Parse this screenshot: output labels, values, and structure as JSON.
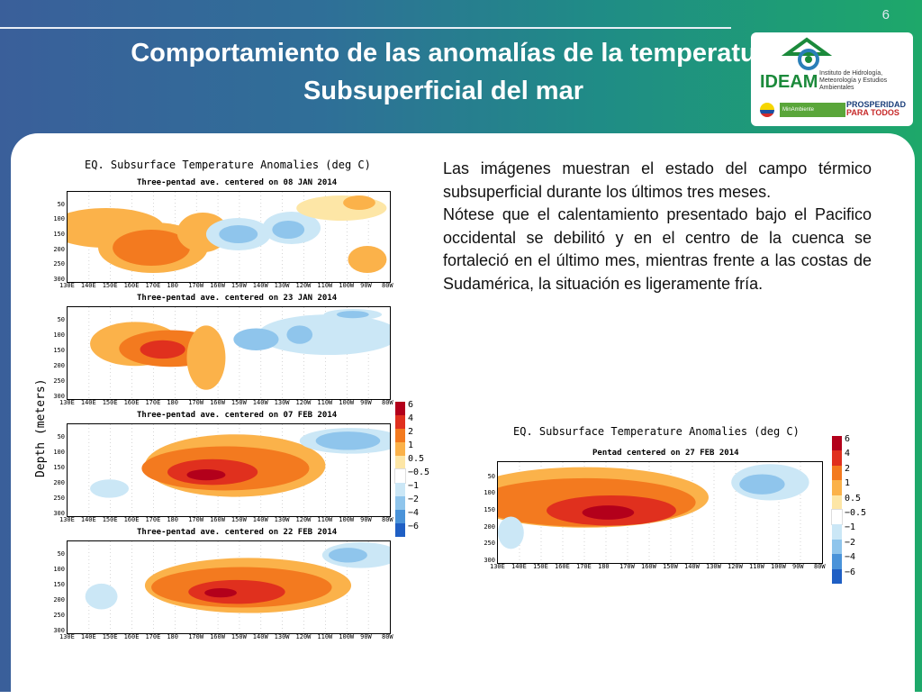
{
  "slide": {
    "page_number": "6",
    "title_line1": "Comportamiento de las anomalías de la temperatu",
    "title_line2": "Subsuperficial del mar"
  },
  "logo": {
    "name": "IDEAM",
    "institute": "Instituto de Hidrología, Meteorología y Estudios Ambientales",
    "ministry": "MinAmbiente",
    "slogan_line1": "PROSPERIDAD",
    "slogan_line2": "PARA TODOS"
  },
  "left_figure": {
    "title": "EQ. Subsurface Temperature Anomalies (deg C)",
    "ylabel": "Depth (meters)",
    "panels": [
      {
        "subtitle": "Three-pentad ave. centered on 08 JAN 2014"
      },
      {
        "subtitle": "Three-pentad ave. centered on 23 JAN 2014"
      },
      {
        "subtitle": "Three-pentad ave. centered on 07 FEB 2014"
      },
      {
        "subtitle": "Three-pentad ave. centered on 22 FEB 2014"
      }
    ],
    "depth_ticks": [
      "50",
      "100",
      "150",
      "200",
      "250",
      "300"
    ],
    "lon_ticks": [
      "130E",
      "140E",
      "150E",
      "160E",
      "170E",
      "180",
      "170W",
      "160W",
      "150W",
      "140W",
      "130W",
      "120W",
      "110W",
      "100W",
      "90W",
      "80W"
    ],
    "colorbar_labels": [
      "6",
      "4",
      "2",
      "1",
      "0.5",
      "−0.5",
      "−1",
      "−2",
      "−4",
      "−6"
    ]
  },
  "right_figure": {
    "title": "EQ. Subsurface Temperature Anomalies (deg C)",
    "subtitle": "Pentad centered on 27 FEB 2014",
    "depth_ticks": [
      "50",
      "100",
      "150",
      "200",
      "250",
      "300"
    ],
    "lon_ticks": [
      "130E",
      "140E",
      "150E",
      "160E",
      "170E",
      "180",
      "170W",
      "160W",
      "150W",
      "140W",
      "130W",
      "120W",
      "110W",
      "100W",
      "90W",
      "80W"
    ],
    "colorbar_labels": [
      "6",
      "4",
      "2",
      "1",
      "0.5",
      "−0.5",
      "−1",
      "−2",
      "−4",
      "−6"
    ]
  },
  "colors": {
    "c6": "#b3001b",
    "c4": "#e0301e",
    "c2": "#f37a1f",
    "c1": "#fbb24a",
    "c05": "#fde6a6",
    "n05": "#ffffff",
    "n1": "#cbe7f6",
    "n2": "#8fc5ec",
    "n4": "#4a93d9",
    "n6": "#1f5fc4"
  },
  "description": {
    "paragraph1": "Las imágenes muestran el estado del campo térmico subsuperficial durante los últimos tres meses.",
    "paragraph2": "Nótese que el calentamiento presentado bajo el Pacifico occidental se debilitó y en el centro de la cuenca se fortaleció en el último mes, mientras frente a las costas de Sudamérica, la situación es ligeramente fría."
  }
}
